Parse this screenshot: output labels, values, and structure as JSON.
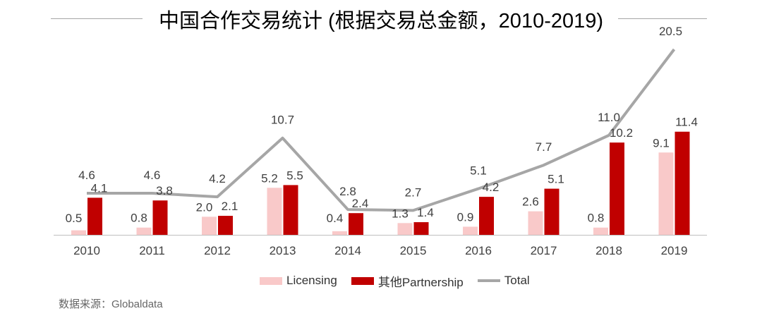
{
  "title": "中国合作交易统计 (根据交易总金额，2010-2019)",
  "source": "数据来源：Globaldata",
  "colors": {
    "licensing": "#f9c9c9",
    "partnership": "#c00000",
    "total": "#a6a6a6"
  },
  "chart_data": {
    "type": "bar",
    "title": "中国合作交易统计 (根据交易总金额，2010-2019)",
    "categories": [
      "2010",
      "2011",
      "2012",
      "2013",
      "2014",
      "2015",
      "2016",
      "2017",
      "2018",
      "2019"
    ],
    "series": [
      {
        "name": "Licensing",
        "type": "bar",
        "values": [
          0.5,
          0.8,
          2.0,
          5.2,
          0.4,
          1.3,
          0.9,
          2.6,
          0.8,
          9.1
        ]
      },
      {
        "name": "其他Partnership",
        "type": "bar",
        "values": [
          4.1,
          3.8,
          2.1,
          5.5,
          2.4,
          1.4,
          4.2,
          5.1,
          10.2,
          11.4
        ]
      },
      {
        "name": "Total",
        "type": "line",
        "values": [
          4.6,
          4.6,
          4.2,
          10.7,
          2.8,
          2.7,
          5.1,
          7.7,
          11.0,
          20.5
        ]
      }
    ],
    "ylim": [
      0,
      22
    ],
    "grid": false,
    "legend": "bottom"
  }
}
